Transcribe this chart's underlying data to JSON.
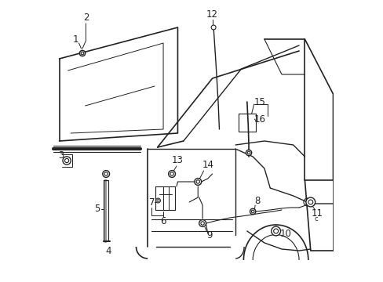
{
  "bg_color": "#ffffff",
  "line_color": "#222222",
  "text_color": "#222222",
  "figsize": [
    4.89,
    3.6
  ],
  "dpi": 100
}
